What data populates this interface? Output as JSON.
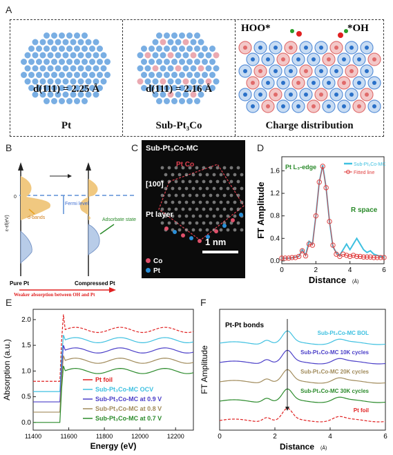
{
  "panel_labels": {
    "a": "A",
    "b": "B",
    "c": "C",
    "d": "D",
    "e": "E",
    "f": "F"
  },
  "panelA": {
    "pt": {
      "caption": "Pt",
      "spacing": "d(111) = 2.25 Å"
    },
    "sub": {
      "caption": "Sub-Pt₃Co",
      "spacing": "d(111) = 2.16 Å"
    },
    "charge": {
      "caption": "Charge distribution",
      "hoo": "HOO*",
      "oh": "*OH"
    },
    "colors": {
      "pt": "#4a90d9",
      "co": "#e06a6a",
      "o": "#e02020",
      "h": "#2a9d2a"
    }
  },
  "panelB": {
    "ylabel": "ε-εf(eV)",
    "zero_tick": "0",
    "fermi": "Fermi level",
    "dbands": "d-bands",
    "adsorbate": "Adsorbate state",
    "left_label": "Pure Pt",
    "right_label": "Compressed Pt",
    "bottom": "Weaker absorption between OH and Pt"
  },
  "panelC": {
    "title": "Sub-Pt₃Co-MC",
    "ptco": "Pt Co",
    "zone": "[100]",
    "ptlayer": "Pt layer",
    "scale": "1 nm",
    "legend": [
      {
        "name": "Co",
        "color": "#e0506a"
      },
      {
        "name": "Pt",
        "color": "#2a8fd8"
      }
    ]
  },
  "chart_data": [
    {
      "type": "line",
      "panel": "D",
      "xlabel": "Distance",
      "xunit": "(Å)",
      "ylabel": "FT Amplitude",
      "xlim": [
        0,
        6
      ],
      "ylim": [
        -0.05,
        1.85
      ],
      "xticks": [
        0,
        2,
        4,
        6
      ],
      "yticks": [
        0.0,
        0.4,
        0.8,
        1.2,
        1.6
      ],
      "annotation": "Pt L₃-edge",
      "annotation2": "R space",
      "legend_placement": "top-right",
      "series": [
        {
          "name": "Sub-Pt₃Co-MC",
          "color": "#3ec0e0",
          "x": [
            0,
            0.5,
            1,
            1.2,
            1.4,
            1.6,
            1.8,
            2.0,
            2.2,
            2.4,
            2.6,
            2.8,
            3.0,
            3.2,
            3.4,
            3.6,
            3.8,
            4.0,
            4.2,
            4.4,
            4.6,
            4.8,
            5.0,
            5.2,
            5.4,
            5.6,
            5.8,
            6.0
          ],
          "y": [
            0.05,
            0.05,
            0.08,
            0.2,
            0.1,
            0.35,
            0.3,
            0.8,
            1.4,
            1.7,
            1.3,
            0.7,
            0.25,
            0.15,
            0.1,
            0.2,
            0.3,
            0.2,
            0.3,
            0.4,
            0.3,
            0.2,
            0.15,
            0.18,
            0.12,
            0.1,
            0.08,
            0.08
          ]
        },
        {
          "name": "Fitted line",
          "color": "#e04040",
          "x": [
            0,
            0.2,
            0.4,
            0.6,
            0.8,
            1.0,
            1.2,
            1.4,
            1.6,
            1.8,
            2.0,
            2.2,
            2.4,
            2.6,
            2.8,
            3.0,
            3.2,
            3.4,
            3.6,
            3.8,
            4.0,
            4.2,
            4.4,
            4.6,
            4.8,
            5.0,
            5.2,
            5.4,
            5.6,
            5.8,
            6.0
          ],
          "y": [
            0.05,
            0.05,
            0.05,
            0.06,
            0.06,
            0.08,
            0.18,
            0.09,
            0.3,
            0.28,
            0.8,
            1.4,
            1.68,
            1.3,
            0.7,
            0.28,
            0.12,
            0.08,
            0.12,
            0.1,
            0.08,
            0.1,
            0.08,
            0.08,
            0.07,
            0.07,
            0.07,
            0.06,
            0.06,
            0.06,
            0.06
          ]
        }
      ]
    },
    {
      "type": "line",
      "panel": "E",
      "xlabel": "Energy (eV)",
      "ylabel": "Absorption (a.u.)",
      "xlim": [
        11400,
        12300
      ],
      "ylim": [
        -0.15,
        2.2
      ],
      "xticks": [
        11400,
        11600,
        11800,
        12000,
        12200
      ],
      "yticks": [
        0.0,
        0.5,
        1.0,
        1.5,
        2.0
      ],
      "legend_placement": "bottom-right",
      "series": [
        {
          "name": "Pt foil",
          "color": "#e02020",
          "offset": 0.8,
          "peak": 1.2
        },
        {
          "name": "Sub-Pt₃Co-MC OCV",
          "color": "#3ec0e0",
          "offset": 0.6,
          "peak": 1.0
        },
        {
          "name": "Sub-Pt₃Co-MC at 0.9 V",
          "color": "#4a3ec8",
          "offset": 0.4,
          "peak": 1.0
        },
        {
          "name": "Sub-Pt₃Co-MC at 0.8 V",
          "color": "#a08a5a",
          "offset": 0.2,
          "peak": 1.0
        },
        {
          "name": "Sub-Pt₃Co-MC at 0.7 V",
          "color": "#2a8a2a",
          "offset": 0.0,
          "peak": 1.0
        }
      ]
    },
    {
      "type": "line",
      "panel": "F",
      "xlabel": "Distance",
      "xunit": "(Å)",
      "ylabel": "FT Amplitude",
      "xlim": [
        0,
        6
      ],
      "xticks": [
        0,
        2,
        4,
        6
      ],
      "annotation": "Pt-Pt bonds",
      "series": [
        {
          "name": "Sub-Pt₃Co-MC BOL",
          "color": "#3ec0e0",
          "offset": 4
        },
        {
          "name": "Sub-Pt₃Co-MC 10K cycles",
          "color": "#4a3ec8",
          "offset": 3
        },
        {
          "name": "Sub-Pt₃Co-MC 20K cycles",
          "color": "#a08a5a",
          "offset": 2
        },
        {
          "name": "Sub-Pt₃Co-MC 30K cycles",
          "color": "#2a8a2a",
          "offset": 1
        },
        {
          "name": "Pt foil",
          "color": "#e02020",
          "offset": 0
        }
      ]
    }
  ]
}
